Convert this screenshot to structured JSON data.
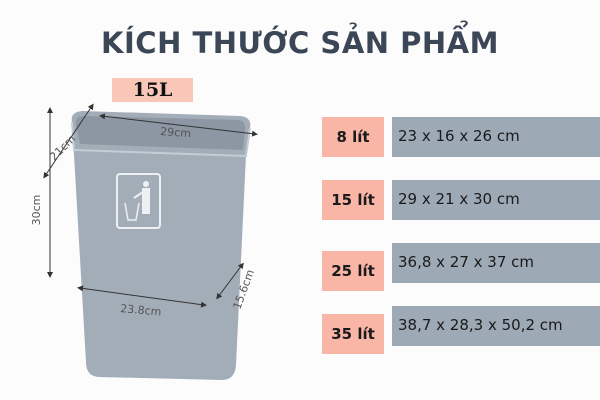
{
  "title": "KÍCH THƯỚC SẢN PHẨM",
  "product_label": "15L",
  "dimensions": {
    "top_width": "29cm",
    "top_depth": "21cm",
    "height": "30cm",
    "bottom_width": "23.8cm",
    "bottom_depth": "15.6cm"
  },
  "sizes": [
    {
      "capacity": "8 lít",
      "size": "23 x 16 x 26 cm"
    },
    {
      "capacity": "15 lít",
      "size": "29 x 21 x 30 cm"
    },
    {
      "capacity": "25 lít",
      "size": "36,8 x 27 x 37 cm"
    },
    {
      "capacity": "35 lít",
      "size": "38,7 x 28,3 x 50,2 cm"
    }
  ],
  "colors": {
    "title": "#3b4656",
    "capacity_bg": "#f9b5a5",
    "size_bg": "#9ea9b6",
    "bin": "#a3adb8"
  }
}
